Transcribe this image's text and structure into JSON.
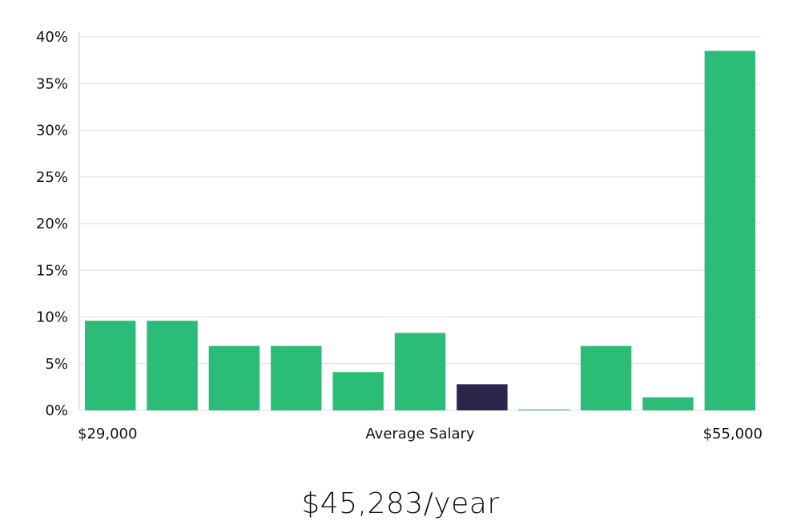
{
  "chart_data": {
    "type": "bar",
    "title": "",
    "xlabel": "Average Salary",
    "x_range_labels": {
      "min": "$29,000",
      "max": "$55,000"
    },
    "ylabel": "",
    "y_tick_labels": [
      "0%",
      "5%",
      "10%",
      "15%",
      "20%",
      "25%",
      "30%",
      "35%",
      "40%"
    ],
    "ylim": [
      0,
      40
    ],
    "grid": true,
    "values": [
      9.6,
      9.6,
      6.9,
      6.9,
      4.1,
      8.3,
      2.8,
      0.1,
      6.9,
      1.4,
      38.5
    ],
    "highlight_index": 6,
    "colors": {
      "bar": "#2bbd78",
      "highlight": "#29264a",
      "grid": "#dddddd",
      "axis": "#cccccc"
    }
  },
  "average_salary_text": "$45,283/year"
}
